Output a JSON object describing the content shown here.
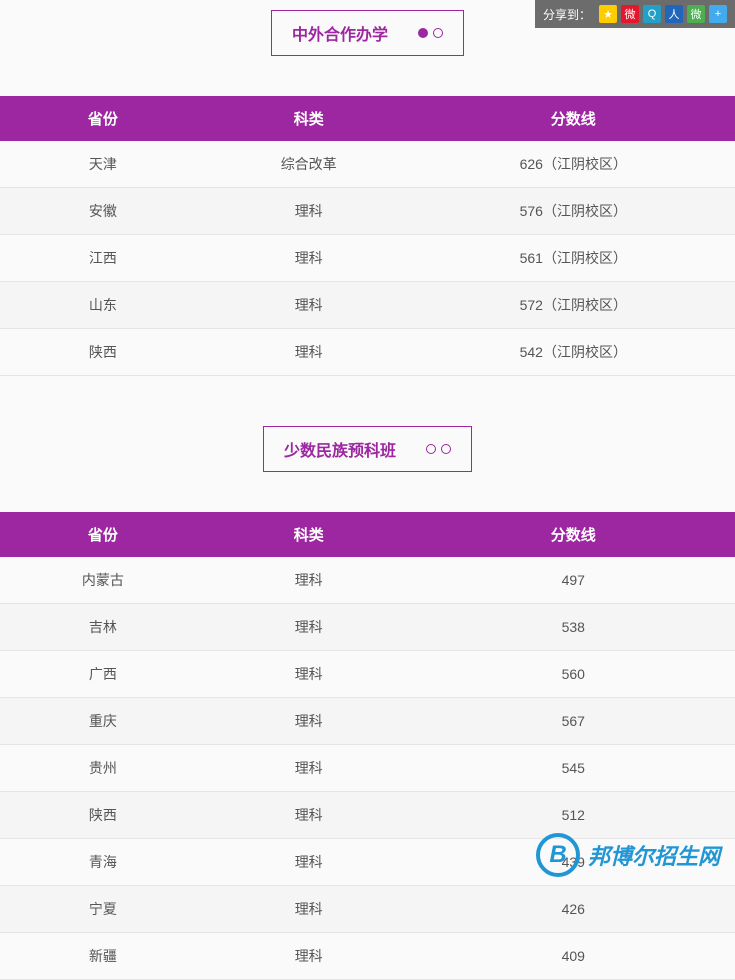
{
  "share": {
    "label": "分享到：",
    "icons": [
      {
        "name": "qzone",
        "bg": "#ffcc00",
        "text": "★"
      },
      {
        "name": "weibo",
        "bg": "#e6162d",
        "text": "微"
      },
      {
        "name": "tencent",
        "bg": "#22a0c7",
        "text": "Q"
      },
      {
        "name": "renren",
        "bg": "#2266bb",
        "text": "人"
      },
      {
        "name": "wechat",
        "bg": "#4caf50",
        "text": "微"
      },
      {
        "name": "more",
        "bg": "#44aaee",
        "text": "+"
      }
    ]
  },
  "section1": {
    "title": "中外合作办学",
    "headers": [
      "省份",
      "科类",
      "分数线"
    ],
    "rows": [
      [
        "天津",
        "综合改革",
        "626（江阴校区）"
      ],
      [
        "安徽",
        "理科",
        "576（江阴校区）"
      ],
      [
        "江西",
        "理科",
        "561（江阴校区）"
      ],
      [
        "山东",
        "理科",
        "572（江阴校区）"
      ],
      [
        "陕西",
        "理科",
        "542（江阴校区）"
      ]
    ]
  },
  "section2": {
    "title": "少数民族预科班",
    "headers": [
      "省份",
      "科类",
      "分数线"
    ],
    "rows": [
      [
        "内蒙古",
        "理科",
        "497"
      ],
      [
        "吉林",
        "理科",
        "538"
      ],
      [
        "广西",
        "理科",
        "560"
      ],
      [
        "重庆",
        "理科",
        "567"
      ],
      [
        "贵州",
        "理科",
        "545"
      ],
      [
        "陕西",
        "理科",
        "512"
      ],
      [
        "青海",
        "理科",
        "439"
      ],
      [
        "宁夏",
        "理科",
        "426"
      ],
      [
        "新疆",
        "理科",
        "409"
      ]
    ]
  },
  "colors": {
    "primary": "#9c27a0",
    "header_bg": "#9c27a0",
    "header_text": "#ffffff",
    "row_alt": "#f5f5f5",
    "border": "#e5e5e5",
    "body_text": "#555555",
    "logo_blue": "#2196d4"
  },
  "logo": {
    "letter": "B",
    "text": "邦博尔招生网"
  },
  "table_layout": {
    "col_widths": [
      "28%",
      "28%",
      "44%"
    ]
  }
}
